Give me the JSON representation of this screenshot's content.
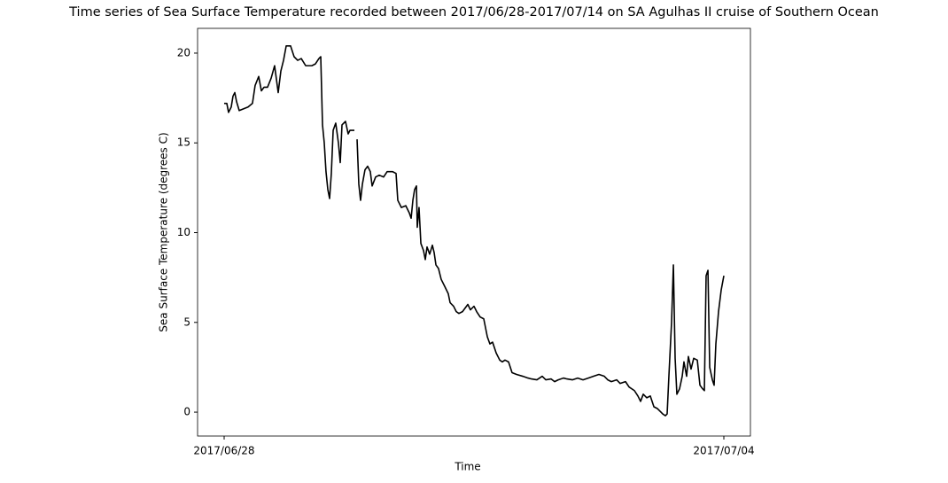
{
  "chart_data": {
    "type": "line",
    "title": "Time series of Sea Surface Temperature recorded between 2017/06/28-2017/07/14 on SA Agulhas II cruise of Southern Ocean",
    "xlabel": "Time",
    "ylabel": "Sea Surface Temperature (degrees C)",
    "xlim": [
      -0.319,
      6.319
    ],
    "ylim": [
      -1.33,
      21.38
    ],
    "xticks": [
      {
        "value": 0,
        "label": "2017/06/28"
      },
      {
        "value": 6,
        "label": "2017/07/04"
      }
    ],
    "yticks": [
      0,
      5,
      10,
      15,
      20
    ],
    "grid": false,
    "x": [
      0,
      0.032,
      0.053,
      0.085,
      0.106,
      0.128,
      0.149,
      0.181,
      0.234,
      0.287,
      0.34,
      0.372,
      0.415,
      0.447,
      0.479,
      0.521,
      0.564,
      0.606,
      0.649,
      0.681,
      0.713,
      0.745,
      0.798,
      0.84,
      0.883,
      0.926,
      0.979,
      1.053,
      1.096,
      1.138,
      1.16,
      1.181,
      1.202,
      1.223,
      1.245,
      1.266,
      1.287,
      1.309,
      1.34,
      1.372,
      1.394,
      1.415,
      1.457,
      1.489,
      1.511,
      1.564,
      1.585,
      1.596,
      1.617,
      1.638,
      1.66,
      1.691,
      1.723,
      1.755,
      1.777,
      1.819,
      1.862,
      1.915,
      1.957,
      2.021,
      2.064,
      2.085,
      2.128,
      2.181,
      2.223,
      2.245,
      2.266,
      2.287,
      2.309,
      2.319,
      2.34,
      2.362,
      2.394,
      2.415,
      2.436,
      2.468,
      2.5,
      2.521,
      2.543,
      2.574,
      2.606,
      2.649,
      2.691,
      2.713,
      2.755,
      2.787,
      2.819,
      2.862,
      2.926,
      2.957,
      3,
      3.032,
      3.074,
      3.117,
      3.16,
      3.191,
      3.223,
      3.266,
      3.309,
      3.34,
      3.372,
      3.415,
      3.457,
      3.511,
      3.585,
      3.649,
      3.691,
      3.755,
      3.819,
      3.862,
      3.926,
      3.968,
      4.011,
      4.074,
      4.117,
      4.181,
      4.245,
      4.309,
      4.372,
      4.436,
      4.5,
      4.564,
      4.606,
      4.649,
      4.713,
      4.755,
      4.819,
      4.862,
      4.926,
      4.968,
      5,
      5.032,
      5.074,
      5.117,
      5.16,
      5.202,
      5.245,
      5.266,
      5.298,
      5.319,
      5.34,
      5.372,
      5.394,
      5.415,
      5.436,
      5.468,
      5.5,
      5.521,
      5.553,
      5.574,
      5.606,
      5.638,
      5.681,
      5.713,
      5.745,
      5.766,
      5.787,
      5.809,
      5.83,
      5.862,
      5.883,
      5.904,
      5.936,
      5.968,
      6
    ],
    "series": [
      {
        "color": "#000000",
        "values": [
          17.2,
          17.2,
          16.7,
          17.0,
          17.6,
          17.8,
          17.3,
          16.8,
          16.9,
          17.0,
          17.2,
          18.2,
          18.7,
          17.9,
          18.1,
          18.1,
          18.6,
          19.3,
          17.8,
          19.0,
          19.6,
          20.4,
          20.4,
          19.8,
          19.6,
          19.7,
          19.3,
          19.3,
          19.4,
          19.7,
          19.8,
          16.0,
          15.0,
          13.4,
          12.4,
          11.9,
          13.3,
          15.7,
          16.1,
          15.0,
          13.9,
          16.0,
          16.2,
          15.5,
          15.7,
          15.7,
          null,
          15.2,
          12.7,
          11.8,
          12.7,
          13.5,
          13.7,
          13.4,
          12.6,
          13.1,
          13.2,
          13.1,
          13.4,
          13.4,
          13.3,
          11.8,
          11.4,
          11.5,
          11.1,
          10.8,
          11.8,
          12.4,
          12.6,
          10.3,
          11.4,
          9.4,
          9.0,
          8.5,
          9.2,
          8.8,
          9.3,
          8.9,
          8.2,
          8.0,
          7.4,
          7.0,
          6.6,
          6.1,
          5.9,
          5.6,
          5.5,
          5.6,
          6.0,
          5.7,
          5.9,
          5.6,
          5.3,
          5.2,
          4.2,
          3.8,
          3.9,
          3.3,
          2.9,
          2.8,
          2.9,
          2.8,
          2.2,
          2.1,
          2.0,
          1.9,
          1.85,
          1.8,
          2.0,
          1.8,
          1.85,
          1.7,
          1.8,
          1.9,
          1.85,
          1.8,
          1.9,
          1.8,
          1.9,
          2.0,
          2.1,
          2.0,
          1.8,
          1.7,
          1.8,
          1.6,
          1.7,
          1.4,
          1.2,
          0.9,
          0.6,
          1.0,
          0.8,
          0.9,
          0.3,
          0.2,
          0.0,
          -0.1,
          -0.2,
          -0.1,
          2.0,
          5.0,
          8.2,
          3.0,
          1.0,
          1.3,
          2.0,
          2.8,
          2.0,
          3.1,
          2.4,
          3.0,
          2.9,
          1.5,
          1.3,
          1.2,
          7.6,
          7.9,
          2.5,
          1.8,
          1.5,
          3.8,
          5.6,
          6.8,
          7.6
        ]
      }
    ]
  }
}
